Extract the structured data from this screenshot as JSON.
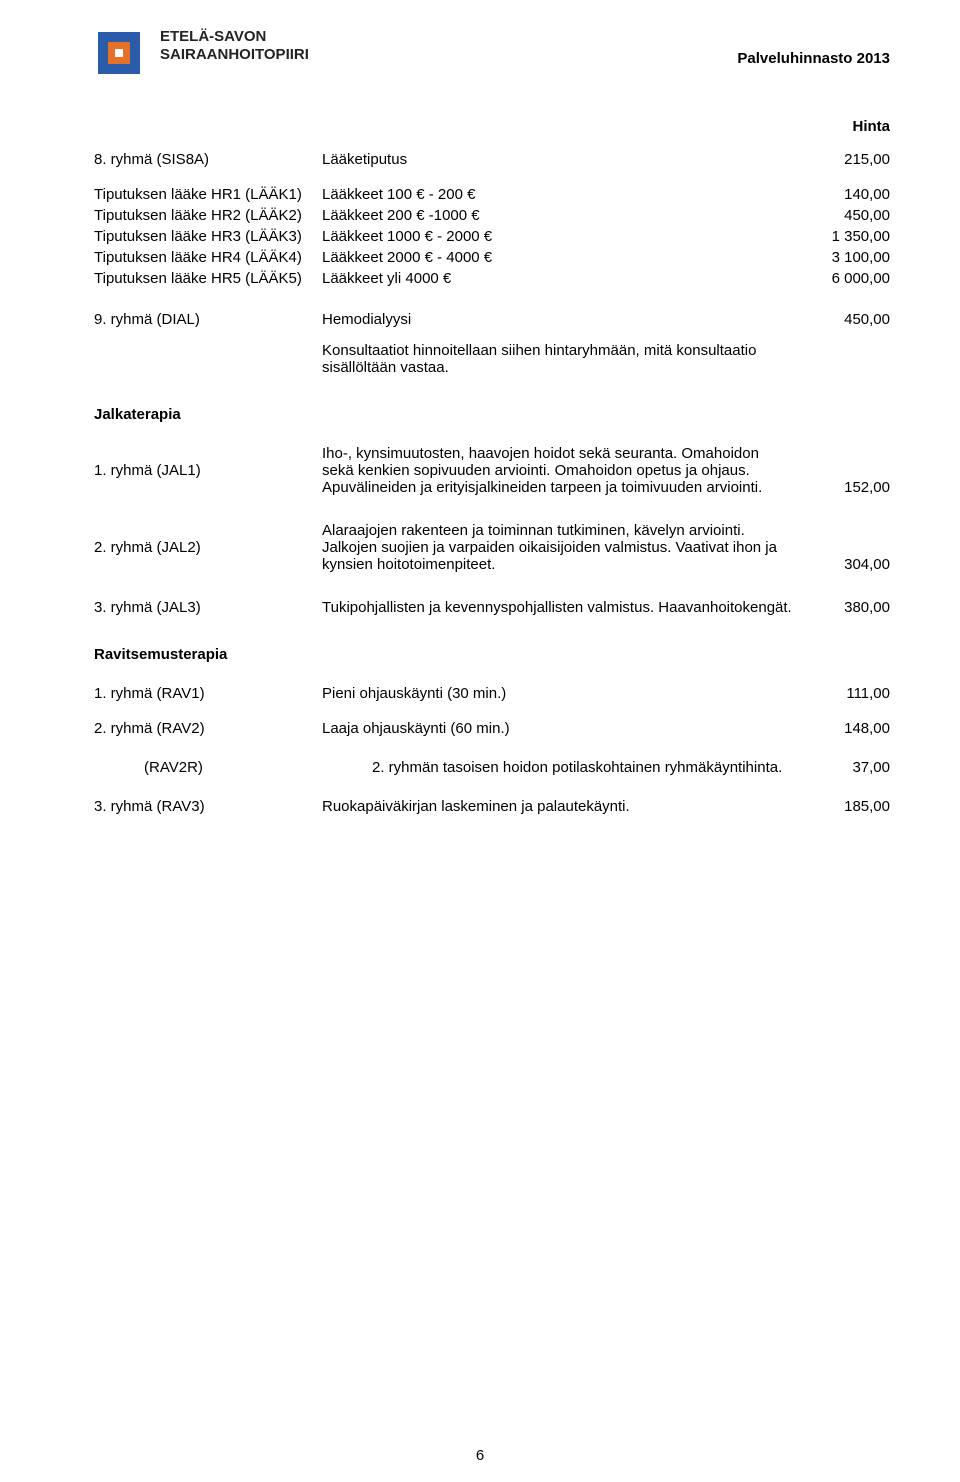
{
  "header": {
    "org_line1": "ETELÄ-SAVON",
    "org_line2": "SAIRAANHOITOPIIRI",
    "right": "Palveluhinnasto 2013",
    "logo": {
      "outer": "#2a5caa",
      "inner": "#e37228",
      "center": "#ffffff"
    }
  },
  "hinta_label": "Hinta",
  "group8": {
    "label": "8. ryhmä (SIS8A)",
    "desc": "Lääketiputus",
    "price": "215,00"
  },
  "hr": [
    {
      "label": "Tiputuksen lääke HR1 (LÄÄK1)",
      "desc": "Lääkkeet 100 € - 200 €",
      "price": "140,00"
    },
    {
      "label": "Tiputuksen lääke HR2 (LÄÄK2)",
      "desc": "Lääkkeet 200 € -1000 €",
      "price": "450,00"
    },
    {
      "label": "Tiputuksen lääke HR3 (LÄÄK3)",
      "desc": "Lääkkeet 1000 € - 2000 €",
      "price": "1 350,00"
    },
    {
      "label": "Tiputuksen lääke HR4 (LÄÄK4)",
      "desc": "Lääkkeet 2000 € - 4000 €",
      "price": "3 100,00"
    },
    {
      "label": "Tiputuksen lääke HR5 (LÄÄK5)",
      "desc": "Lääkkeet yli 4000 €",
      "price": "6 000,00"
    }
  ],
  "dial": {
    "label": "9. ryhmä (DIAL)",
    "desc": "Hemodialyysi",
    "price": "450,00"
  },
  "dial_note": "Konsultaatiot hinnoitellaan siihen hintaryhmään, mitä konsultaatio sisällöltään vastaa.",
  "jalkaterapia_title": "Jalkaterapia",
  "jal": [
    {
      "label": "1. ryhmä (JAL1)",
      "desc": "Iho-, kynsimuutosten, haavojen hoidot sekä seuranta. Omahoidon sekä kenkien sopivuuden arviointi. Omahoidon opetus ja ohjaus. Apuvälineiden ja erityisjalkineiden tarpeen ja toimivuuden arviointi.",
      "price": "152,00"
    },
    {
      "label": "2. ryhmä (JAL2)",
      "desc": "Alaraajojen rakenteen ja toiminnan tutkiminen, kävelyn arviointi. Jalkojen suojien ja varpaiden oikaisijoiden valmistus. Vaativat ihon ja kynsien hoitotoimenpiteet.",
      "price": "304,00"
    },
    {
      "label": "3. ryhmä (JAL3)",
      "desc": "Tukipohjallisten ja kevennyspohjallisten valmistus. Haavanhoitokengät.",
      "price": "380,00"
    }
  ],
  "rav_title": "Ravitsemusterapia",
  "rav": [
    {
      "label": "1. ryhmä (RAV1)",
      "desc": "Pieni ohjauskäynti (30 min.)",
      "price": "111,00"
    },
    {
      "label": "2. ryhmä (RAV2)",
      "desc": "Laaja ohjauskäynti (60 min.)",
      "price": "148,00"
    }
  ],
  "rav2r": {
    "label": "(RAV2R)",
    "desc": "2. ryhmän tasoisen hoidon potilaskohtainen ryhmäkäyntihinta.",
    "price": "37,00"
  },
  "rav3": {
    "label": "3. ryhmä (RAV3)",
    "desc": "Ruokapäiväkirjan laskeminen ja palautekäynti.",
    "price": "185,00"
  },
  "pagenum": "6"
}
